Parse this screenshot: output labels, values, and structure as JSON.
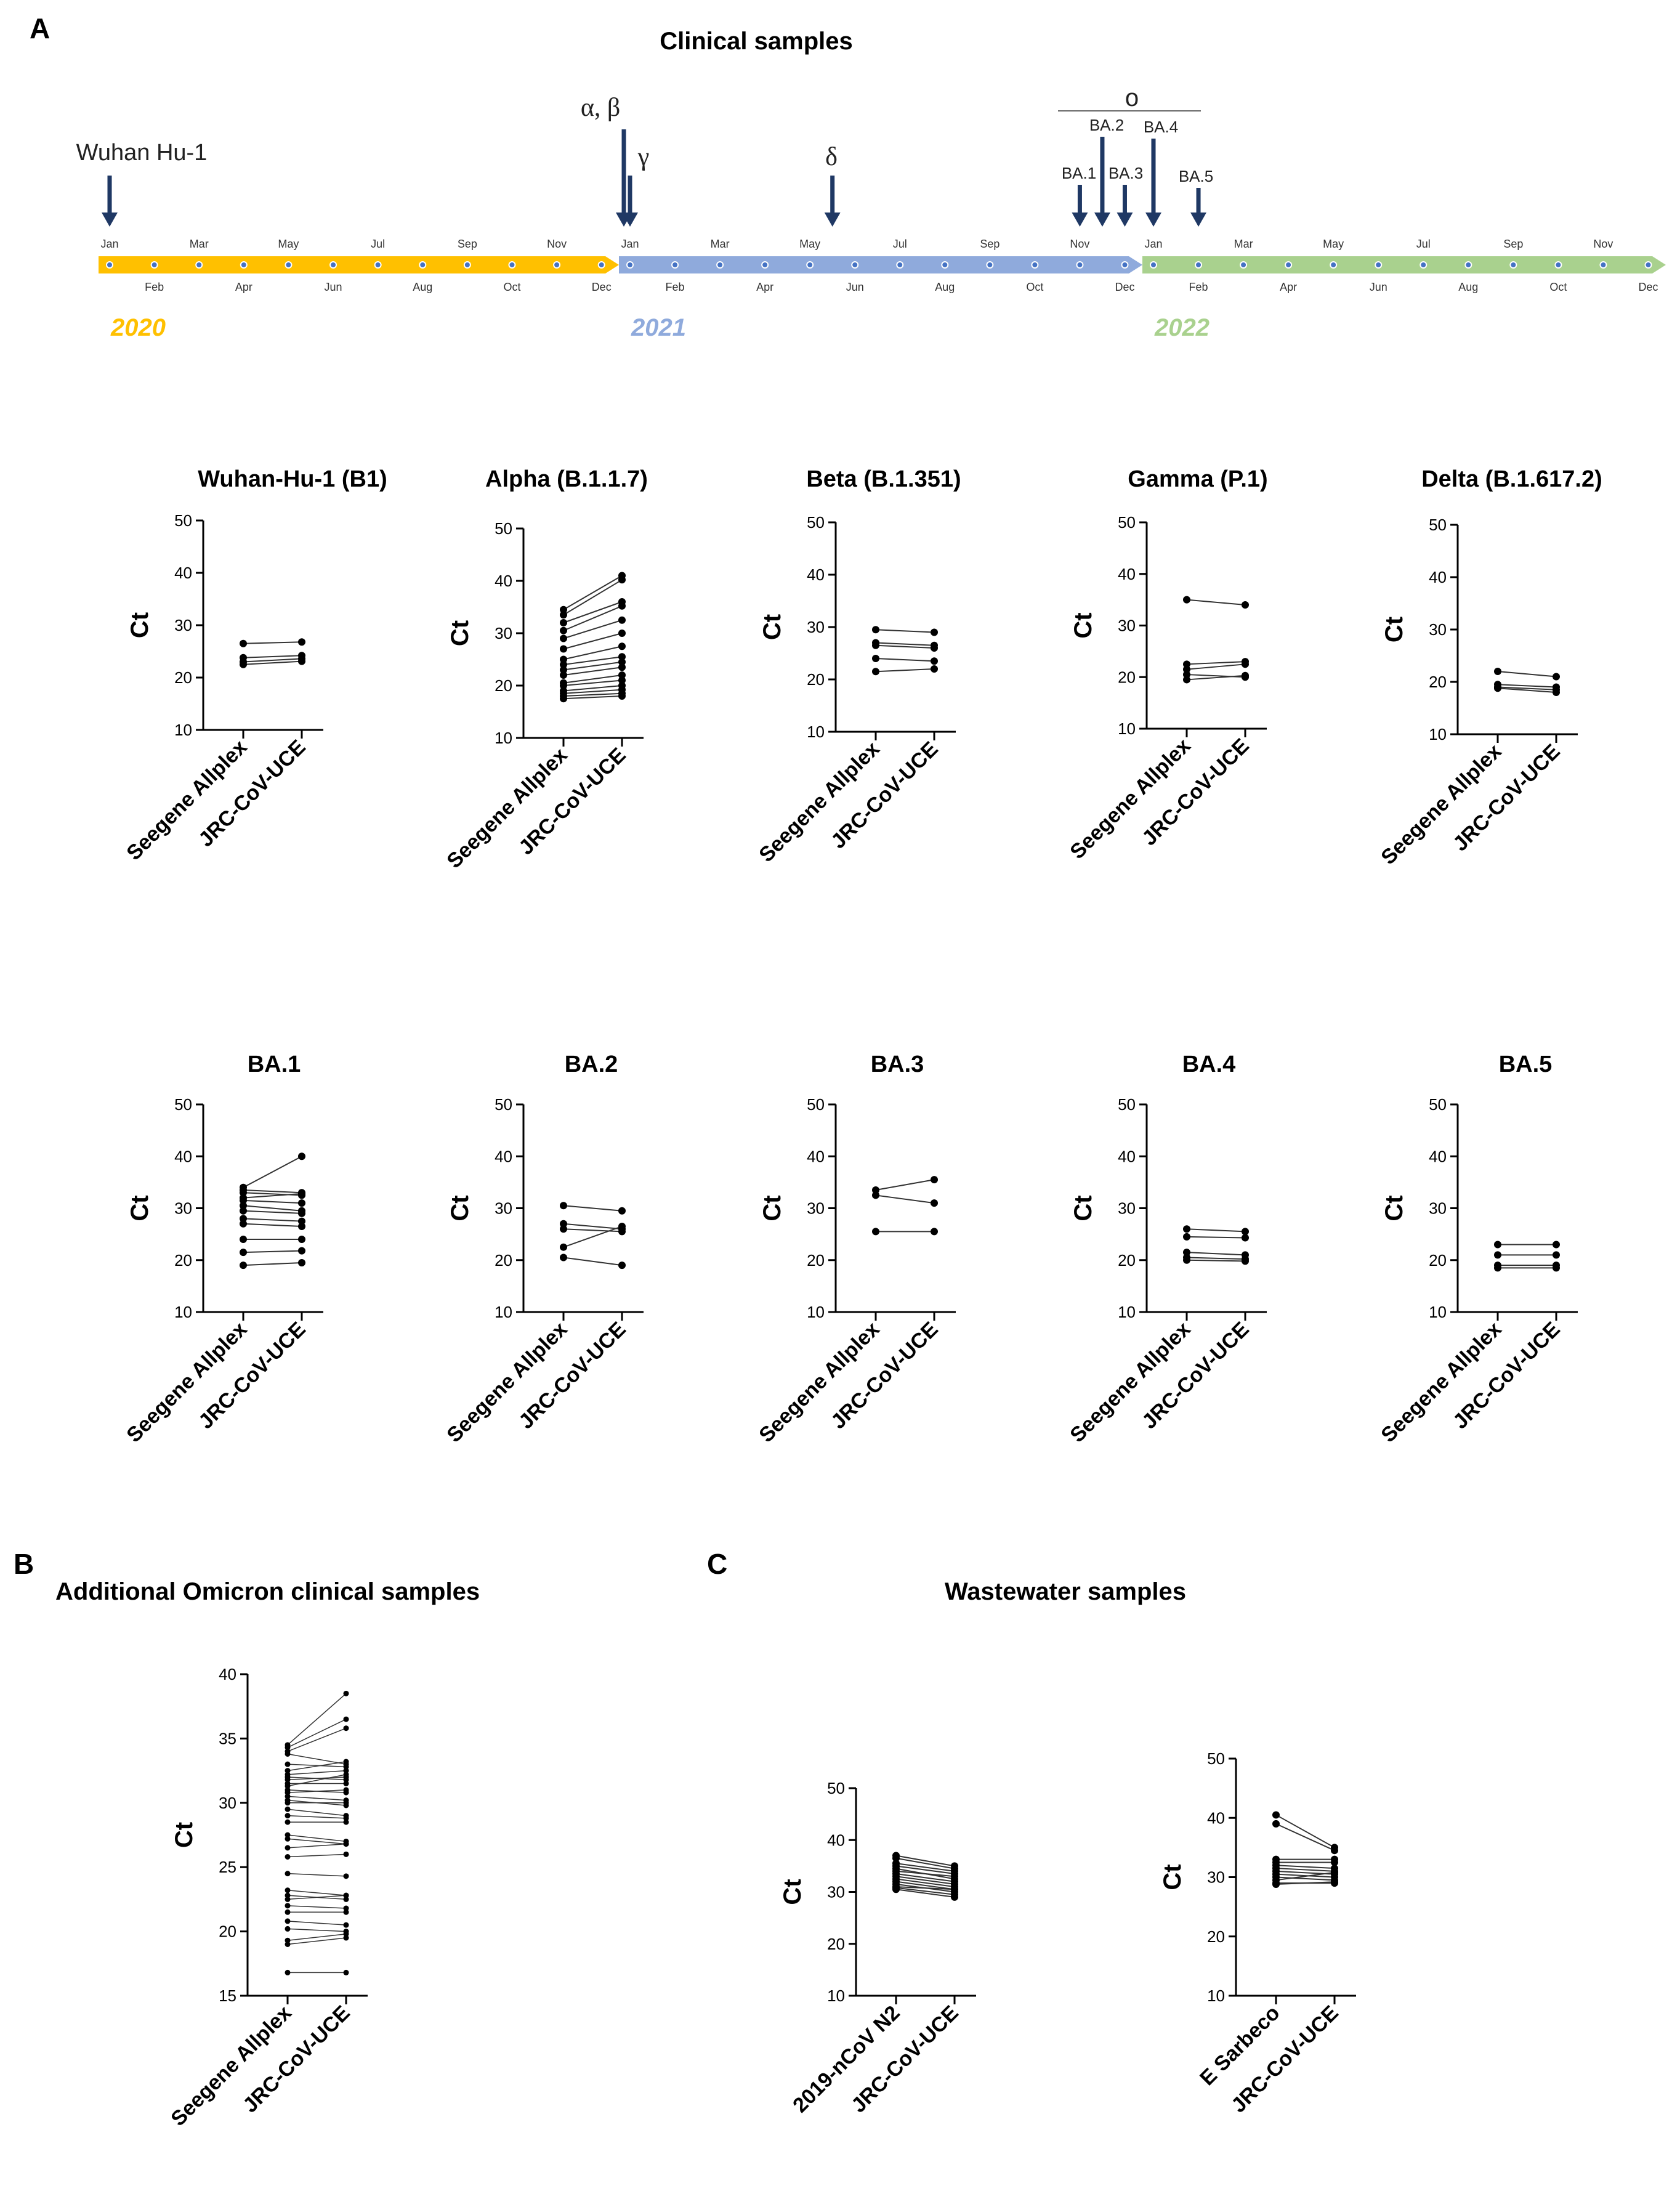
{
  "panel_labels": {
    "A": "A",
    "B": "B",
    "C": "C"
  },
  "timeline": {
    "title": "Clinical samples",
    "years": [
      {
        "label": "2020",
        "color": "#FFC000"
      },
      {
        "label": "2021",
        "color": "#8FAADC"
      },
      {
        "label": "2022",
        "color": "#A9D18E"
      }
    ],
    "months_top": [
      "Jan",
      "Mar",
      "May",
      "Jul",
      "Sep",
      "Nov"
    ],
    "months_bottom": [
      "Feb",
      "Apr",
      "Jun",
      "Aug",
      "Oct",
      "Dec"
    ],
    "variant_markers": [
      {
        "label": "Wuhan Hu-1",
        "year": 2020,
        "month": 1
      },
      {
        "label": "α, β",
        "year": 2020,
        "month": 12.5
      },
      {
        "label": "γ",
        "year": 2021,
        "month": 1
      },
      {
        "label": "δ",
        "year": 2021,
        "month": 5.5
      },
      {
        "label": "BA.1",
        "year": 2021,
        "month": 11
      },
      {
        "label": "BA.2",
        "year": 2021,
        "month": 11.5
      },
      {
        "label": "BA.3",
        "year": 2021,
        "month": 12
      },
      {
        "label": "BA.4",
        "year": 2022,
        "month": 1
      },
      {
        "label": "BA.5",
        "year": 2022,
        "month": 2
      }
    ],
    "omicron_label": "o",
    "arrow_color": "#1F3864"
  },
  "chart_data": [
    {
      "type": "line",
      "panel": "A",
      "title": "Wuhan-Hu-1 (B1)",
      "ylabel": "Ct",
      "categories": [
        "Seegene Allplex",
        "JRC-CoV-UCE"
      ],
      "ylim": [
        10,
        50
      ],
      "yticks": [
        10,
        20,
        30,
        40,
        50
      ],
      "pairs": [
        [
          26.5,
          26.8
        ],
        [
          23.8,
          24.2
        ],
        [
          23.0,
          23.6
        ],
        [
          22.5,
          23.1
        ]
      ]
    },
    {
      "type": "line",
      "panel": "A",
      "title": "Alpha (B.1.1.7)",
      "ylabel": "Ct",
      "categories": [
        "Seegene Allplex",
        "JRC-CoV-UCE"
      ],
      "ylim": [
        10,
        50
      ],
      "yticks": [
        10,
        20,
        30,
        40,
        50
      ],
      "pairs": [
        [
          34.5,
          41.0
        ],
        [
          33.5,
          40.2
        ],
        [
          32.0,
          36.0
        ],
        [
          30.5,
          35.2
        ],
        [
          29.0,
          32.5
        ],
        [
          27.0,
          30.0
        ],
        [
          25.0,
          27.5
        ],
        [
          24.0,
          25.5
        ],
        [
          23.0,
          24.5
        ],
        [
          22.0,
          23.5
        ],
        [
          20.5,
          22.0
        ],
        [
          20.0,
          21.0
        ],
        [
          19.0,
          20.0
        ],
        [
          18.5,
          19.2
        ],
        [
          18.0,
          18.5
        ],
        [
          17.5,
          18.0
        ]
      ]
    },
    {
      "type": "line",
      "panel": "A",
      "title": "Beta (B.1.351)",
      "ylabel": "Ct",
      "categories": [
        "Seegene Allplex",
        "JRC-CoV-UCE"
      ],
      "ylim": [
        10,
        50
      ],
      "yticks": [
        10,
        20,
        30,
        40,
        50
      ],
      "pairs": [
        [
          29.5,
          29.0
        ],
        [
          27.0,
          26.5
        ],
        [
          26.5,
          26.0
        ],
        [
          24.0,
          23.5
        ],
        [
          21.5,
          22.0
        ]
      ]
    },
    {
      "type": "line",
      "panel": "A",
      "title": "Gamma (P.1)",
      "ylabel": "Ct",
      "categories": [
        "Seegene Allplex",
        "JRC-CoV-UCE"
      ],
      "ylim": [
        10,
        50
      ],
      "yticks": [
        10,
        20,
        30,
        40,
        50
      ],
      "pairs": [
        [
          35.0,
          34.0
        ],
        [
          22.5,
          23.0
        ],
        [
          21.5,
          22.5
        ],
        [
          20.5,
          20.0
        ],
        [
          19.5,
          20.3
        ]
      ]
    },
    {
      "type": "line",
      "panel": "A",
      "title": "Delta (B.1.617.2)",
      "ylabel": "Ct",
      "categories": [
        "Seegene Allplex",
        "JRC-CoV-UCE"
      ],
      "ylim": [
        10,
        50
      ],
      "yticks": [
        10,
        20,
        30,
        40,
        50
      ],
      "pairs": [
        [
          22.0,
          21.0
        ],
        [
          19.5,
          19.0
        ],
        [
          19.0,
          18.5
        ],
        [
          18.8,
          18.0
        ]
      ]
    },
    {
      "type": "line",
      "panel": "A",
      "title": "BA.1",
      "ylabel": "Ct",
      "categories": [
        "Seegene Allplex",
        "JRC-CoV-UCE"
      ],
      "ylim": [
        10,
        50
      ],
      "yticks": [
        10,
        20,
        30,
        40,
        50
      ],
      "pairs": [
        [
          34.0,
          40.0
        ],
        [
          33.5,
          33.0
        ],
        [
          33.0,
          32.5
        ],
        [
          32.0,
          32.8
        ],
        [
          31.5,
          31.0
        ],
        [
          30.5,
          29.5
        ],
        [
          29.5,
          29.0
        ],
        [
          28.0,
          27.5
        ],
        [
          27.0,
          26.5
        ],
        [
          24.0,
          24.0
        ],
        [
          21.5,
          21.8
        ],
        [
          19.0,
          19.5
        ]
      ]
    },
    {
      "type": "line",
      "panel": "A",
      "title": "BA.2",
      "ylabel": "Ct",
      "categories": [
        "Seegene Allplex",
        "JRC-CoV-UCE"
      ],
      "ylim": [
        10,
        50
      ],
      "yticks": [
        10,
        20,
        30,
        40,
        50
      ],
      "pairs": [
        [
          30.5,
          29.5
        ],
        [
          27.0,
          26.0
        ],
        [
          26.0,
          25.5
        ],
        [
          22.5,
          26.5
        ],
        [
          20.5,
          19.0
        ]
      ]
    },
    {
      "type": "line",
      "panel": "A",
      "title": "BA.3",
      "ylabel": "Ct",
      "categories": [
        "Seegene Allplex",
        "JRC-CoV-UCE"
      ],
      "ylim": [
        10,
        50
      ],
      "yticks": [
        10,
        20,
        30,
        40,
        50
      ],
      "pairs": [
        [
          33.5,
          35.5
        ],
        [
          32.5,
          31.0
        ],
        [
          25.5,
          25.5
        ]
      ]
    },
    {
      "type": "line",
      "panel": "A",
      "title": "BA.4",
      "ylabel": "Ct",
      "categories": [
        "Seegene Allplex",
        "JRC-CoV-UCE"
      ],
      "ylim": [
        10,
        50
      ],
      "yticks": [
        10,
        20,
        30,
        40,
        50
      ],
      "pairs": [
        [
          26.0,
          25.5
        ],
        [
          24.5,
          24.3
        ],
        [
          21.5,
          21.0
        ],
        [
          20.5,
          20.2
        ],
        [
          20.0,
          19.8
        ]
      ]
    },
    {
      "type": "line",
      "panel": "A",
      "title": "BA.5",
      "ylabel": "Ct",
      "categories": [
        "Seegene Allplex",
        "JRC-CoV-UCE"
      ],
      "ylim": [
        10,
        50
      ],
      "yticks": [
        10,
        20,
        30,
        40,
        50
      ],
      "pairs": [
        [
          23.0,
          23.0
        ],
        [
          21.0,
          21.0
        ],
        [
          19.0,
          19.0
        ],
        [
          18.5,
          18.5
        ]
      ]
    },
    {
      "type": "line",
      "panel": "B",
      "title": "Additional Omicron clinical samples",
      "ylabel": "Ct",
      "categories": [
        "Seegene Allplex",
        "JRC-CoV-UCE"
      ],
      "ylim": [
        15,
        40
      ],
      "yticks": [
        15,
        20,
        25,
        30,
        35,
        40
      ],
      "pairs": [
        [
          34.5,
          38.5
        ],
        [
          34.3,
          36.5
        ],
        [
          34.0,
          35.8
        ],
        [
          33.8,
          33.0
        ],
        [
          33.0,
          32.8
        ],
        [
          32.5,
          33.2
        ],
        [
          32.2,
          32.5
        ],
        [
          32.0,
          31.8
        ],
        [
          31.8,
          32.0
        ],
        [
          31.5,
          31.5
        ],
        [
          31.3,
          32.2
        ],
        [
          31.0,
          30.8
        ],
        [
          30.8,
          31.0
        ],
        [
          30.5,
          30.2
        ],
        [
          30.2,
          29.8
        ],
        [
          30.0,
          30.0
        ],
        [
          29.5,
          29.0
        ],
        [
          29.0,
          28.8
        ],
        [
          28.5,
          28.5
        ],
        [
          27.5,
          27.0
        ],
        [
          27.2,
          26.8
        ],
        [
          26.5,
          26.8
        ],
        [
          25.8,
          26.0
        ],
        [
          24.5,
          24.3
        ],
        [
          23.2,
          22.8
        ],
        [
          22.8,
          22.5
        ],
        [
          22.5,
          22.8
        ],
        [
          22.0,
          21.8
        ],
        [
          21.5,
          21.5
        ],
        [
          20.8,
          20.5
        ],
        [
          20.2,
          20.0
        ],
        [
          19.3,
          19.8
        ],
        [
          19.0,
          19.5
        ],
        [
          16.8,
          16.8
        ]
      ]
    },
    {
      "type": "line",
      "panel": "C",
      "title": "Wastewater samples",
      "ylabel": "Ct",
      "categories": [
        "2019-nCoV N2",
        "JRC-CoV-UCE"
      ],
      "ylim": [
        10,
        50
      ],
      "yticks": [
        10,
        20,
        30,
        40,
        50
      ],
      "pairs": [
        [
          37.0,
          35.0
        ],
        [
          36.5,
          34.5
        ],
        [
          35.5,
          34.0
        ],
        [
          35.0,
          33.5
        ],
        [
          34.5,
          32.5
        ],
        [
          34.0,
          33.0
        ],
        [
          33.5,
          32.0
        ],
        [
          33.0,
          31.5
        ],
        [
          32.5,
          31.0
        ],
        [
          32.0,
          30.5
        ],
        [
          31.5,
          30.0
        ],
        [
          31.0,
          30.5
        ],
        [
          30.8,
          29.5
        ],
        [
          30.5,
          29.0
        ]
      ]
    },
    {
      "type": "line",
      "panel": "C",
      "title": "",
      "ylabel": "Ct",
      "categories": [
        "E Sarbeco",
        "JRC-CoV-UCE"
      ],
      "ylim": [
        10,
        50
      ],
      "yticks": [
        10,
        20,
        30,
        40,
        50
      ],
      "pairs": [
        [
          40.5,
          35.0
        ],
        [
          39.0,
          34.5
        ],
        [
          33.0,
          33.0
        ],
        [
          32.5,
          32.5
        ],
        [
          32.0,
          31.5
        ],
        [
          31.5,
          31.0
        ],
        [
          31.0,
          30.5
        ],
        [
          30.5,
          30.0
        ],
        [
          30.0,
          29.5
        ],
        [
          29.5,
          30.8
        ],
        [
          29.0,
          29.0
        ],
        [
          28.8,
          29.2
        ]
      ]
    }
  ]
}
